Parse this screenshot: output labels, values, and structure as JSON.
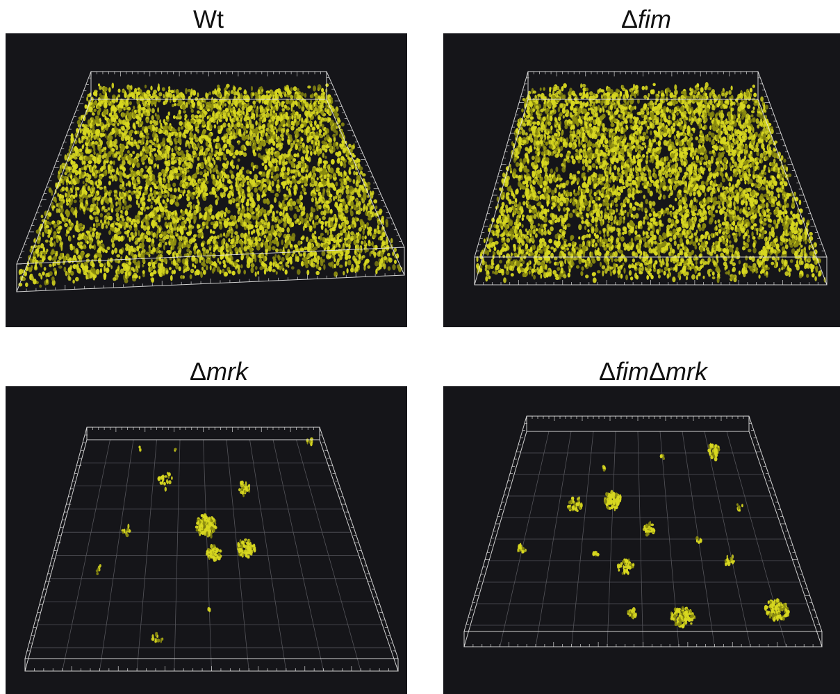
{
  "panels": [
    {
      "id": "wt",
      "title_parts": [
        {
          "text": "Wt",
          "italic": false
        }
      ],
      "coverage": "dense"
    },
    {
      "id": "fim",
      "title_parts": [
        {
          "text": "Δ",
          "italic": false
        },
        {
          "text": "fim",
          "italic": true
        }
      ],
      "coverage": "dense"
    },
    {
      "id": "mrk",
      "title_parts": [
        {
          "text": "Δ",
          "italic": false
        },
        {
          "text": "mrk",
          "italic": true
        }
      ],
      "coverage": "sparse"
    },
    {
      "id": "fimmrk",
      "title_parts": [
        {
          "text": "Δ",
          "italic": false
        },
        {
          "text": "fim",
          "italic": true
        },
        {
          "text": "Δ",
          "italic": false
        },
        {
          "text": "mrk",
          "italic": true
        }
      ],
      "coverage": "sparse"
    }
  ],
  "colors": {
    "background": "#151519",
    "biofilm": "#d8d820",
    "biofilm_dark": "#8a8a10",
    "frame": "#e6e6e6",
    "grid": "#6a6a70"
  }
}
